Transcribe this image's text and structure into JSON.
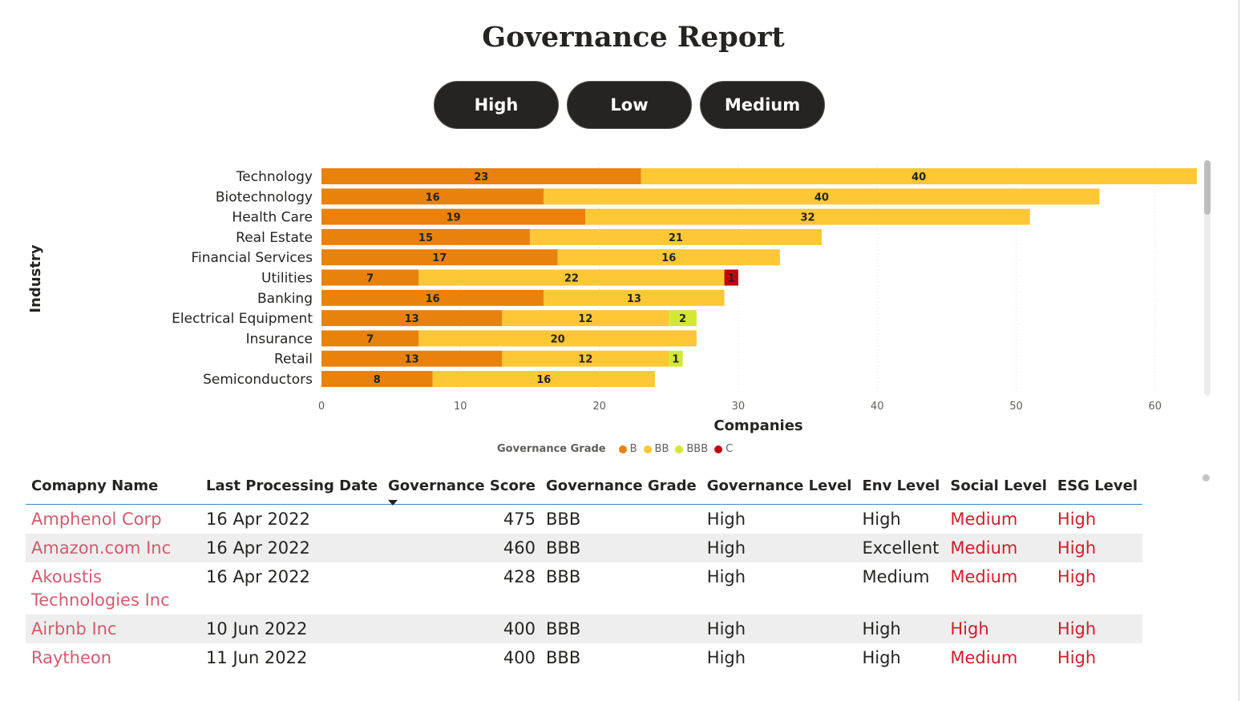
{
  "page": {
    "title": "Governance Report"
  },
  "filters": [
    {
      "label": "High"
    },
    {
      "label": "Low"
    },
    {
      "label": "Medium"
    }
  ],
  "chart_data": {
    "type": "bar",
    "orientation": "horizontal",
    "stacked": true,
    "categories": [
      "Technology",
      "Biotechnology",
      "Health Care",
      "Real Estate",
      "Financial Services",
      "Utilities",
      "Banking",
      "Electrical Equipment",
      "Insurance",
      "Retail",
      "Semiconductors"
    ],
    "series": [
      {
        "name": "B",
        "color": "#e8820c",
        "values": [
          23,
          16,
          19,
          15,
          17,
          7,
          16,
          13,
          7,
          13,
          8
        ]
      },
      {
        "name": "BB",
        "color": "#fdc735",
        "values": [
          40,
          40,
          32,
          21,
          16,
          22,
          13,
          12,
          20,
          12,
          16
        ]
      },
      {
        "name": "BBB",
        "color": "#d4e832",
        "values": [
          0,
          0,
          0,
          0,
          0,
          0,
          0,
          2,
          0,
          1,
          0
        ]
      },
      {
        "name": "C",
        "color": "#c4000f",
        "values": [
          0,
          0,
          0,
          0,
          0,
          1,
          0,
          0,
          0,
          0,
          0
        ]
      }
    ],
    "xlabel": "Companies",
    "ylabel": "Industry",
    "xlim": [
      0,
      63
    ],
    "xticks": [
      0,
      10,
      20,
      30,
      40,
      50,
      60
    ],
    "grid": true,
    "legend": {
      "title": "Governance Grade",
      "position": "bottom"
    }
  },
  "table": {
    "columns": [
      "Comapny Name",
      "Last Processing Date",
      "Governance Score",
      "Governance Grade",
      "Governance Level",
      "Env Level",
      "Social Level",
      "ESG Level"
    ],
    "rows": [
      {
        "name": "Amphenol Corp",
        "date": "16 Apr 2022",
        "score": "475",
        "grade": "BBB",
        "gov_level": "High",
        "env_level": "High",
        "social_level": "Medium",
        "esg_level": "High"
      },
      {
        "name": "Amazon.com Inc",
        "date": "16 Apr 2022",
        "score": "460",
        "grade": "BBB",
        "gov_level": "High",
        "env_level": "Excellent",
        "social_level": "Medium",
        "esg_level": "High"
      },
      {
        "name": "Akoustis Technologies Inc",
        "date": "16 Apr 2022",
        "score": "428",
        "grade": "BBB",
        "gov_level": "High",
        "env_level": "Medium",
        "social_level": "Medium",
        "esg_level": "High"
      },
      {
        "name": "Airbnb Inc",
        "date": "10 Jun 2022",
        "score": "400",
        "grade": "BBB",
        "gov_level": "High",
        "env_level": "High",
        "social_level": "High",
        "esg_level": "High"
      },
      {
        "name": "Raytheon",
        "date": "11 Jun 2022",
        "score": "400",
        "grade": "BBB",
        "gov_level": "High",
        "env_level": "High",
        "social_level": "Medium",
        "esg_level": "High"
      }
    ]
  }
}
